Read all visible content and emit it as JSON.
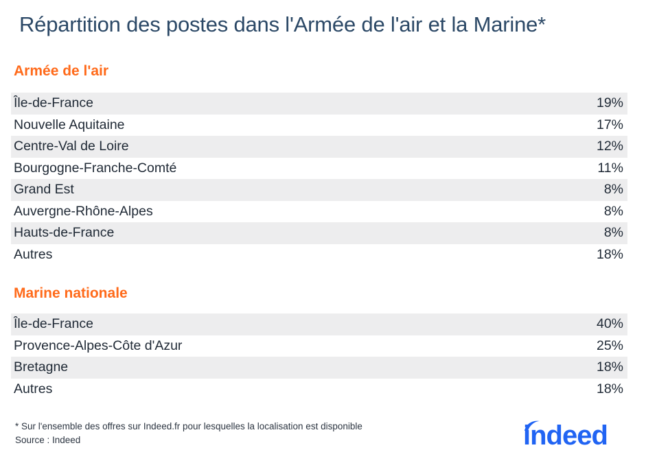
{
  "title": "Répartition des postes dans l'Armée de l'air et la Marine*",
  "colors": {
    "accent": "#ff6a1a",
    "title": "#2b4866",
    "row_shade": "#ededee",
    "logo": "#2164f3"
  },
  "chart_data": [
    {
      "type": "table",
      "title": "Armée de l'air",
      "categories": [
        "Île-de-France",
        "Nouvelle Aquitaine",
        "Centre-Val de Loire",
        "Bourgogne-Franche-Comté",
        "Grand Est",
        "Auvergne-Rhône-Alpes",
        "Hauts-de-France",
        "Autres"
      ],
      "values": [
        19,
        17,
        12,
        11,
        8,
        8,
        8,
        18
      ],
      "labels": [
        "19%",
        "17%",
        "12%",
        "11%",
        "8%",
        "8%",
        "8%",
        "18%"
      ]
    },
    {
      "type": "table",
      "title": "Marine nationale",
      "categories": [
        "Île-de-France",
        "Provence-Alpes-Côte d'Azur",
        "Bretagne",
        "Autres"
      ],
      "values": [
        40,
        25,
        18,
        18
      ],
      "labels": [
        "40%",
        "25%",
        "18%",
        "18%"
      ]
    }
  ],
  "footnote": {
    "note": "* Sur l'ensemble des offres sur Indeed.fr pour lesquelles la localisation est disponible",
    "source": "Source : Indeed"
  },
  "logo": {
    "text": "indeed",
    "icon": "indeed-logo"
  }
}
